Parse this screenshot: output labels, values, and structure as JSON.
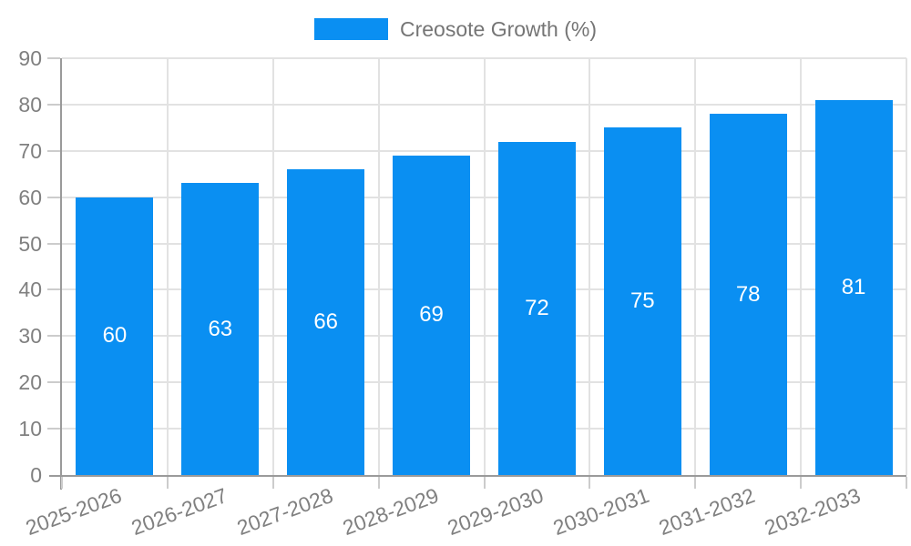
{
  "chart_data": {
    "type": "bar",
    "title": "",
    "legend_label": "Creosote Growth (%)",
    "legend_position": "top",
    "categories": [
      "2025-2026",
      "2026-2027",
      "2027-2028",
      "2028-2029",
      "2029-2030",
      "2030-2031",
      "2031-2032",
      "2032-2033"
    ],
    "series": [
      {
        "name": "Creosote Growth (%)",
        "values": [
          60,
          63,
          66,
          69,
          72,
          75,
          78,
          81
        ]
      }
    ],
    "value_labels": [
      "60",
      "63",
      "66",
      "69",
      "72",
      "75",
      "78",
      "81"
    ],
    "value_label_position": "inside-center",
    "xlabel": "",
    "ylabel": "",
    "ylim": [
      0,
      90
    ],
    "ytick_step": 10,
    "yticks": [
      "0",
      "10",
      "20",
      "30",
      "40",
      "50",
      "60",
      "70",
      "80",
      "90"
    ],
    "grid": true,
    "xtick_rotation_deg": -20
  },
  "colors": {
    "bar": "#0a8ff2",
    "grid": "#e2e2e2",
    "axis": "#9a9a9a",
    "tick_mark": "#cccccc",
    "tick_text": "#808080",
    "legend_text": "#757575",
    "value_text": "#ffffff"
  }
}
